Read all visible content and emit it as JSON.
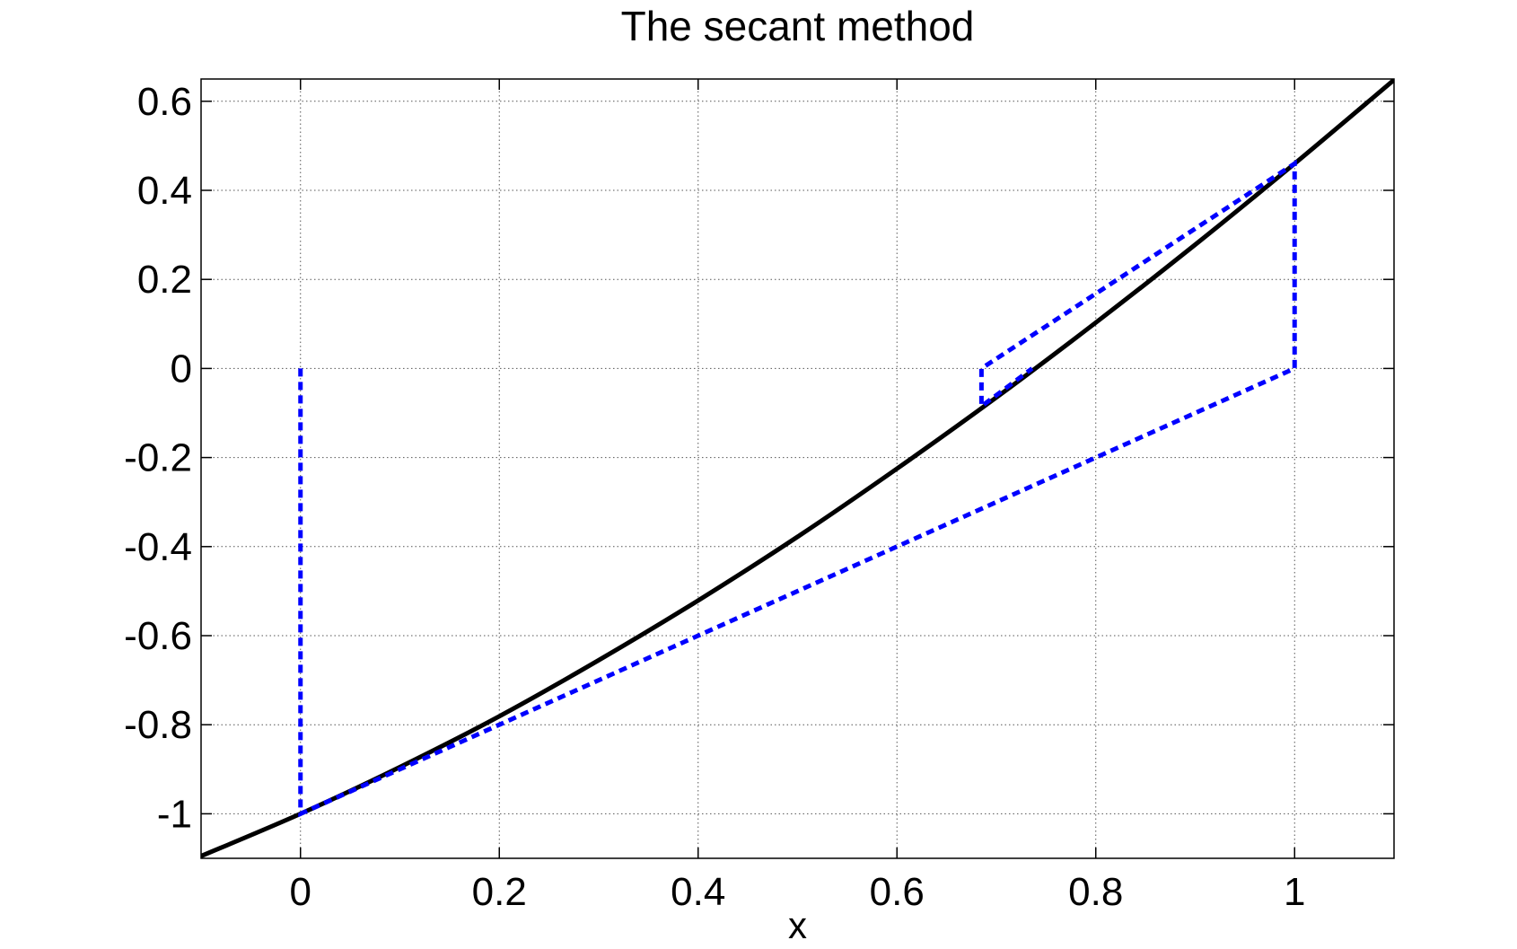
{
  "chart_data": {
    "type": "line",
    "title": "The secant method",
    "xlabel": "x",
    "ylabel": "",
    "xlim": [
      -0.1,
      1.1
    ],
    "ylim": [
      -1.1,
      0.65
    ],
    "grid": true,
    "xticks": [
      0,
      0.2,
      0.4,
      0.6,
      0.8,
      1
    ],
    "xtick_labels": [
      "0",
      "0.2",
      "0.4",
      "0.6",
      "0.8",
      "1"
    ],
    "yticks": [
      -1,
      -0.8,
      -0.6,
      -0.4,
      -0.2,
      0,
      0.2,
      0.4,
      0.6
    ],
    "ytick_labels": [
      "-1",
      "-0.8",
      "-0.6",
      "-0.4",
      "-0.2",
      "0",
      "0.2",
      "0.4",
      "0.6"
    ],
    "series": [
      {
        "style": "solid",
        "color": "#000000",
        "x": [
          -0.1,
          0,
          0.1,
          0.2,
          0.3,
          0.4,
          0.5,
          0.6,
          0.7,
          0.8,
          0.9,
          1.0,
          1.1
        ],
        "y": [
          -1.095,
          -1.0,
          -0.895,
          -0.781,
          -0.655,
          -0.521,
          -0.378,
          -0.225,
          -0.065,
          0.103,
          0.278,
          0.46,
          0.648
        ]
      },
      {
        "style": "dashed",
        "color": "#0000ff",
        "x": [
          0,
          0,
          1,
          1,
          0.685,
          0.685,
          0.736
        ],
        "y": [
          0,
          -1,
          0,
          0.46,
          0,
          -0.085,
          0
        ]
      }
    ]
  }
}
